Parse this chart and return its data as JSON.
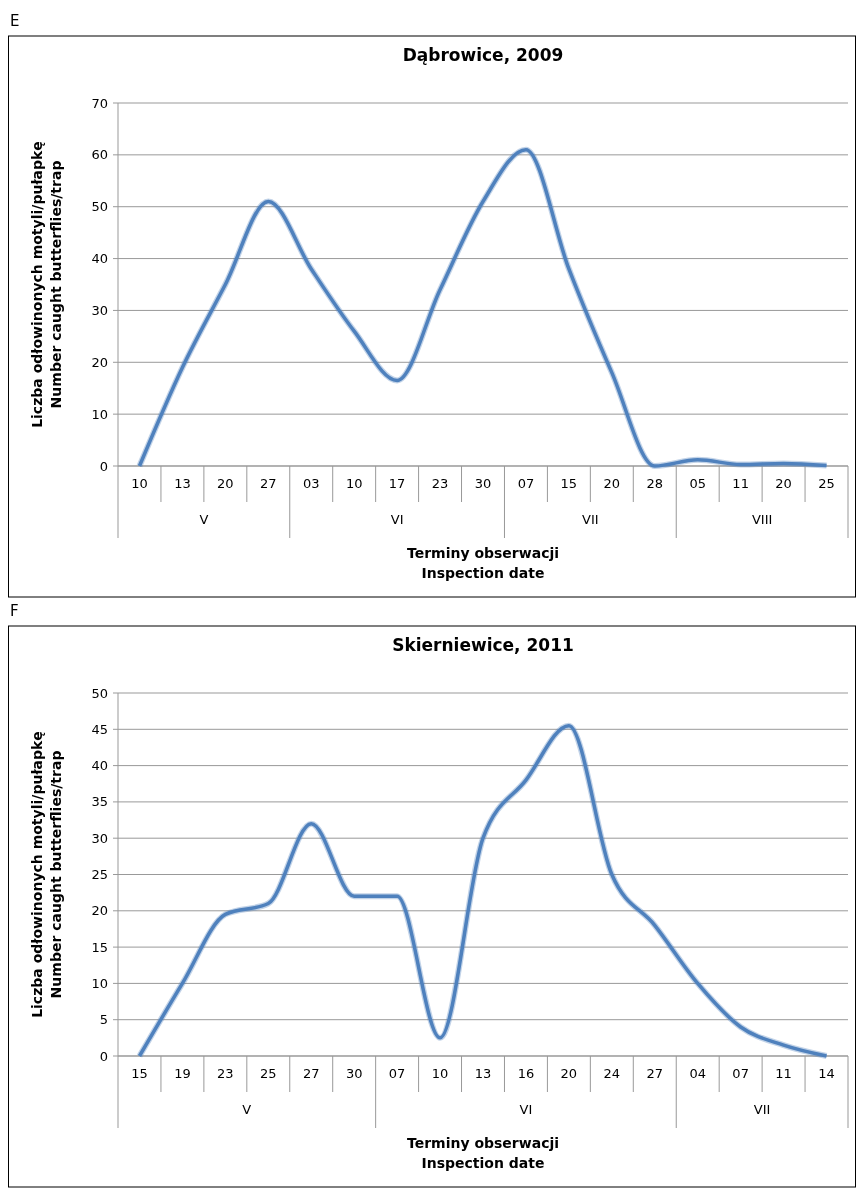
{
  "chart_data": [
    {
      "type": "line",
      "title": "Dąbrowice, 2009",
      "xlabel": "Terminy obserwacji\nInspection date",
      "ylabel": "Liczba odłowinonych motyli/pułapkę\nNumber caught butterflies/trap",
      "categories": [
        "10",
        "13",
        "20",
        "27",
        "03",
        "10",
        "17",
        "23",
        "30",
        "07",
        "15",
        "20",
        "28",
        "05",
        "11",
        "20",
        "25"
      ],
      "series": [
        {
          "color": "#4f81bd",
          "values": [
            0,
            19,
            35,
            51,
            38,
            26,
            16.5,
            34,
            51,
            61,
            38,
            18,
            0,
            1.2,
            0.3,
            0.5,
            0.1
          ]
        }
      ],
      "ylim": [
        0,
        70
      ],
      "yticks": [
        0,
        10,
        20,
        30,
        40,
        50,
        60,
        70
      ],
      "grid": "y",
      "line_style": "solid",
      "marker": "none",
      "annotations": [
        "E",
        "V",
        "VI",
        "VII",
        "VIII"
      ]
    },
    {
      "type": "line",
      "title": "Skierniewice, 2011",
      "xlabel": "Terminy obserwacji\nInspection date",
      "ylabel": "Liczba odłowinonych motyli/pułapkę\nNumber caught butterflies/trap",
      "categories": [
        "15",
        "19",
        "23",
        "25",
        "27",
        "30",
        "07",
        "10",
        "13",
        "16",
        "20",
        "24",
        "27",
        "04",
        "07",
        "11",
        "14"
      ],
      "series": [
        {
          "color": "#4f81bd",
          "values": [
            0,
            10,
            19.5,
            21,
            32,
            22,
            22,
            2.5,
            30,
            38,
            45.5,
            25,
            18,
            10,
            4,
            1.5,
            0
          ]
        }
      ],
      "ylim": [
        0,
        50
      ],
      "yticks": [
        0,
        5,
        10,
        15,
        20,
        25,
        30,
        35,
        40,
        45,
        50
      ],
      "grid": "y",
      "line_style": "solid",
      "marker": "none",
      "annotations": [
        "F",
        "V",
        "VI",
        "VII"
      ]
    }
  ]
}
